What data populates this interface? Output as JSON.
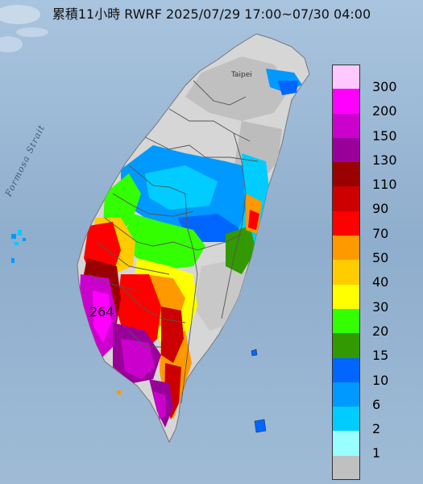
{
  "title": "累積11小時 RWRF 2025/07/29 17:00~07/30 04:00",
  "max_value": "264",
  "labels": {
    "strait": "Formosa Strait",
    "taipei": "Taipei"
  },
  "colors": {
    "sea": "#8fb0cf",
    "land": "#d9d9d9",
    "boundary": "#555555"
  },
  "legend": [
    {
      "label": "300",
      "color": "#ffc8ff"
    },
    {
      "label": "200",
      "color": "#ff00ff"
    },
    {
      "label": "150",
      "color": "#cc00cc"
    },
    {
      "label": "130",
      "color": "#990099"
    },
    {
      "label": "110",
      "color": "#990000"
    },
    {
      "label": "90",
      "color": "#cc0000"
    },
    {
      "label": "70",
      "color": "#ff0000"
    },
    {
      "label": "50",
      "color": "#ff9900"
    },
    {
      "label": "40",
      "color": "#ffcc00"
    },
    {
      "label": "30",
      "color": "#ffff00"
    },
    {
      "label": "20",
      "color": "#33ff00"
    },
    {
      "label": "15",
      "color": "#339900"
    },
    {
      "label": "10",
      "color": "#0066ff"
    },
    {
      "label": "6",
      "color": "#0099ff"
    },
    {
      "label": "2",
      "color": "#00ccff"
    },
    {
      "label": "1",
      "color": "#99ffff"
    },
    {
      "label": "",
      "color": "#c0c0c0"
    }
  ]
}
